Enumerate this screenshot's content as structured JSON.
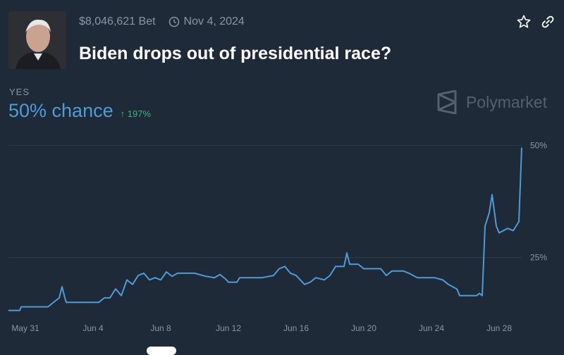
{
  "header": {
    "volume": "$8,046,621 Bet",
    "end_date": "Nov 4, 2024",
    "title": "Biden drops out of presidential race?"
  },
  "outcome": {
    "label": "YES",
    "chance": "50% chance",
    "change": "197%"
  },
  "brand": {
    "name": "Polymarket"
  },
  "colors": {
    "accent": "#4f9bd6",
    "positive": "#3fb27f",
    "background": "#1e2a38"
  },
  "icons": [
    "clock-icon",
    "star-icon",
    "link-icon",
    "polymarket-logo-icon"
  ],
  "chart_data": {
    "type": "line",
    "title": "",
    "xlabel": "",
    "ylabel": "",
    "x_ticks": [
      "May 31",
      "Jun 4",
      "Jun 8",
      "Jun 12",
      "Jun 16",
      "Jun 20",
      "Jun 24",
      "Jun 28"
    ],
    "y_ticks": [
      "50%",
      "25%"
    ],
    "ylim": [
      13,
      51
    ],
    "grid": true,
    "series": [
      {
        "name": "",
        "color": "#4f9bd6",
        "points": [
          [
            "2024-05-30 00:00",
            13.2
          ],
          [
            "2024-05-30 16:00",
            13.2
          ],
          [
            "2024-05-30 18:00",
            14.0
          ],
          [
            "2024-05-31 12:00",
            14.0
          ],
          [
            "2024-06-01 08:00",
            14.0
          ],
          [
            "2024-06-01 12:00",
            14.5
          ],
          [
            "2024-06-02 00:00",
            16.0
          ],
          [
            "2024-06-02 04:00",
            18.5
          ],
          [
            "2024-06-02 08:00",
            16.0
          ],
          [
            "2024-06-02 10:00",
            15.0
          ],
          [
            "2024-06-03 00:00",
            15.0
          ],
          [
            "2024-06-04 08:00",
            15.0
          ],
          [
            "2024-06-04 16:00",
            16.0
          ],
          [
            "2024-06-05 00:00",
            16.0
          ],
          [
            "2024-06-05 08:00",
            18.0
          ],
          [
            "2024-06-05 16:00",
            16.5
          ],
          [
            "2024-06-06 00:00",
            20.0
          ],
          [
            "2024-06-06 08:00",
            19.0
          ],
          [
            "2024-06-06 16:00",
            21.0
          ],
          [
            "2024-06-07 00:00",
            21.5
          ],
          [
            "2024-06-07 08:00",
            20.0
          ],
          [
            "2024-06-07 16:00",
            20.5
          ],
          [
            "2024-06-08 00:00",
            20.0
          ],
          [
            "2024-06-08 08:00",
            21.8
          ],
          [
            "2024-06-08 16:00",
            20.8
          ],
          [
            "2024-06-09 00:00",
            21.5
          ],
          [
            "2024-06-10 00:00",
            21.5
          ],
          [
            "2024-06-10 16:00",
            20.8
          ],
          [
            "2024-06-11 04:00",
            20.5
          ],
          [
            "2024-06-11 12:00",
            21.2
          ],
          [
            "2024-06-11 20:00",
            20.2
          ],
          [
            "2024-06-12 00:00",
            19.5
          ],
          [
            "2024-06-12 12:00",
            19.5
          ],
          [
            "2024-06-12 16:00",
            20.5
          ],
          [
            "2024-06-14 00:00",
            20.5
          ],
          [
            "2024-06-14 16:00",
            21.0
          ],
          [
            "2024-06-15 00:00",
            22.5
          ],
          [
            "2024-06-15 08:00",
            23.0
          ],
          [
            "2024-06-15 16:00",
            21.5
          ],
          [
            "2024-06-16 00:00",
            21.0
          ],
          [
            "2024-06-16 12:00",
            19.0
          ],
          [
            "2024-06-16 20:00",
            19.5
          ],
          [
            "2024-06-17 04:00",
            20.5
          ],
          [
            "2024-06-17 16:00",
            20.0
          ],
          [
            "2024-06-18 00:00",
            21.0
          ],
          [
            "2024-06-18 08:00",
            23.0
          ],
          [
            "2024-06-18 20:00",
            23.0
          ],
          [
            "2024-06-19 00:00",
            26.0
          ],
          [
            "2024-06-19 04:00",
            23.5
          ],
          [
            "2024-06-19 16:00",
            23.5
          ],
          [
            "2024-06-20 00:00",
            22.5
          ],
          [
            "2024-06-21 00:00",
            22.5
          ],
          [
            "2024-06-21 08:00",
            21.0
          ],
          [
            "2024-06-21 16:00",
            22.0
          ],
          [
            "2024-06-22 08:00",
            22.0
          ],
          [
            "2024-06-22 16:00",
            21.5
          ],
          [
            "2024-06-23 04:00",
            20.5
          ],
          [
            "2024-06-24 04:00",
            20.5
          ],
          [
            "2024-06-24 16:00",
            20.0
          ],
          [
            "2024-06-25 00:00",
            19.0
          ],
          [
            "2024-06-25 12:00",
            18.0
          ],
          [
            "2024-06-25 16:00",
            16.5
          ],
          [
            "2024-06-26 16:00",
            16.5
          ],
          [
            "2024-06-26 20:00",
            17.0
          ],
          [
            "2024-06-27 00:00",
            16.5
          ],
          [
            "2024-06-27 04:00",
            32.0
          ],
          [
            "2024-06-27 10:00",
            35.0
          ],
          [
            "2024-06-27 14:00",
            39.0
          ],
          [
            "2024-06-27 20:00",
            32.0
          ],
          [
            "2024-06-28 00:00",
            30.5
          ],
          [
            "2024-06-28 12:00",
            31.5
          ],
          [
            "2024-06-28 20:00",
            31.0
          ],
          [
            "2024-06-29 00:00",
            32.0
          ],
          [
            "2024-06-29 04:00",
            33.0
          ],
          [
            "2024-06-29 08:00",
            49.5
          ]
        ]
      }
    ]
  }
}
